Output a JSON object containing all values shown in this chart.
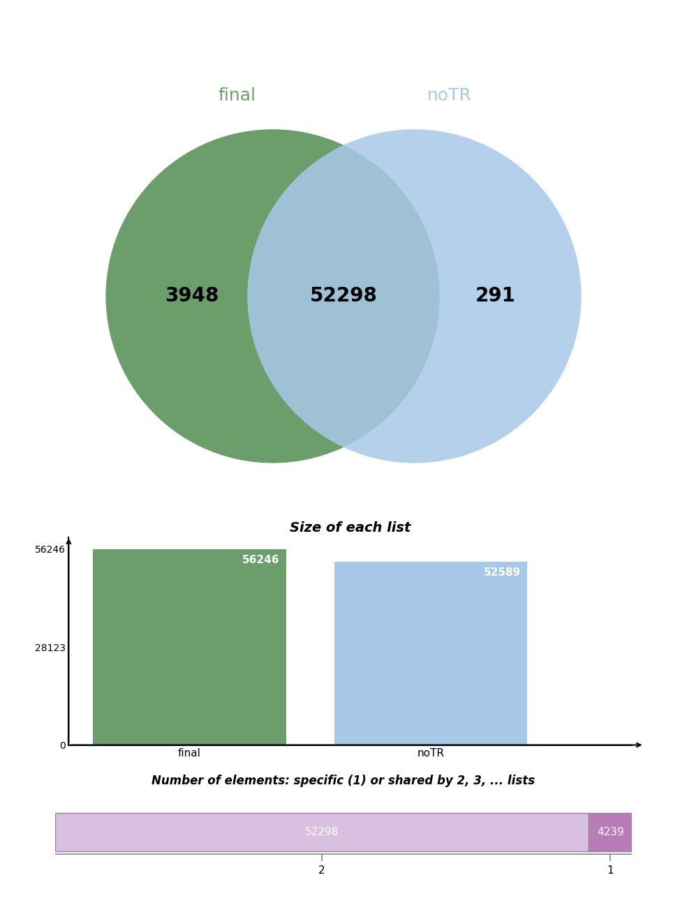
{
  "venn_left_label": "final",
  "venn_right_label": "noTR",
  "venn_left_only": "3948",
  "venn_intersection": "52298",
  "venn_right_only": "291",
  "venn_left_color": "#6b9e6b",
  "venn_right_color": "#a8c8e8",
  "venn_left_label_color": "#6b9e6b",
  "venn_right_label_color": "#a8c8e8",
  "bar_title": "Size of each list",
  "bar_categories": [
    "final",
    "noTR"
  ],
  "bar_values": [
    56246,
    52589
  ],
  "bar_colors": [
    "#6b9e6b",
    "#a8c8e8"
  ],
  "bar_yticks": [
    0,
    28123,
    56246
  ],
  "bar_value_labels": [
    "56246",
    "52589"
  ],
  "hbar_title": "Number of elements: specific (1) or shared by 2, 3, ... lists",
  "hbar_values": [
    52298,
    4239
  ],
  "hbar_colors": [
    "#d9bfe0",
    "#b87db8"
  ],
  "hbar_labels": [
    "52298",
    "4239"
  ],
  "hbar_xtick_labels": [
    "2",
    "1"
  ],
  "background_color": "#ffffff"
}
